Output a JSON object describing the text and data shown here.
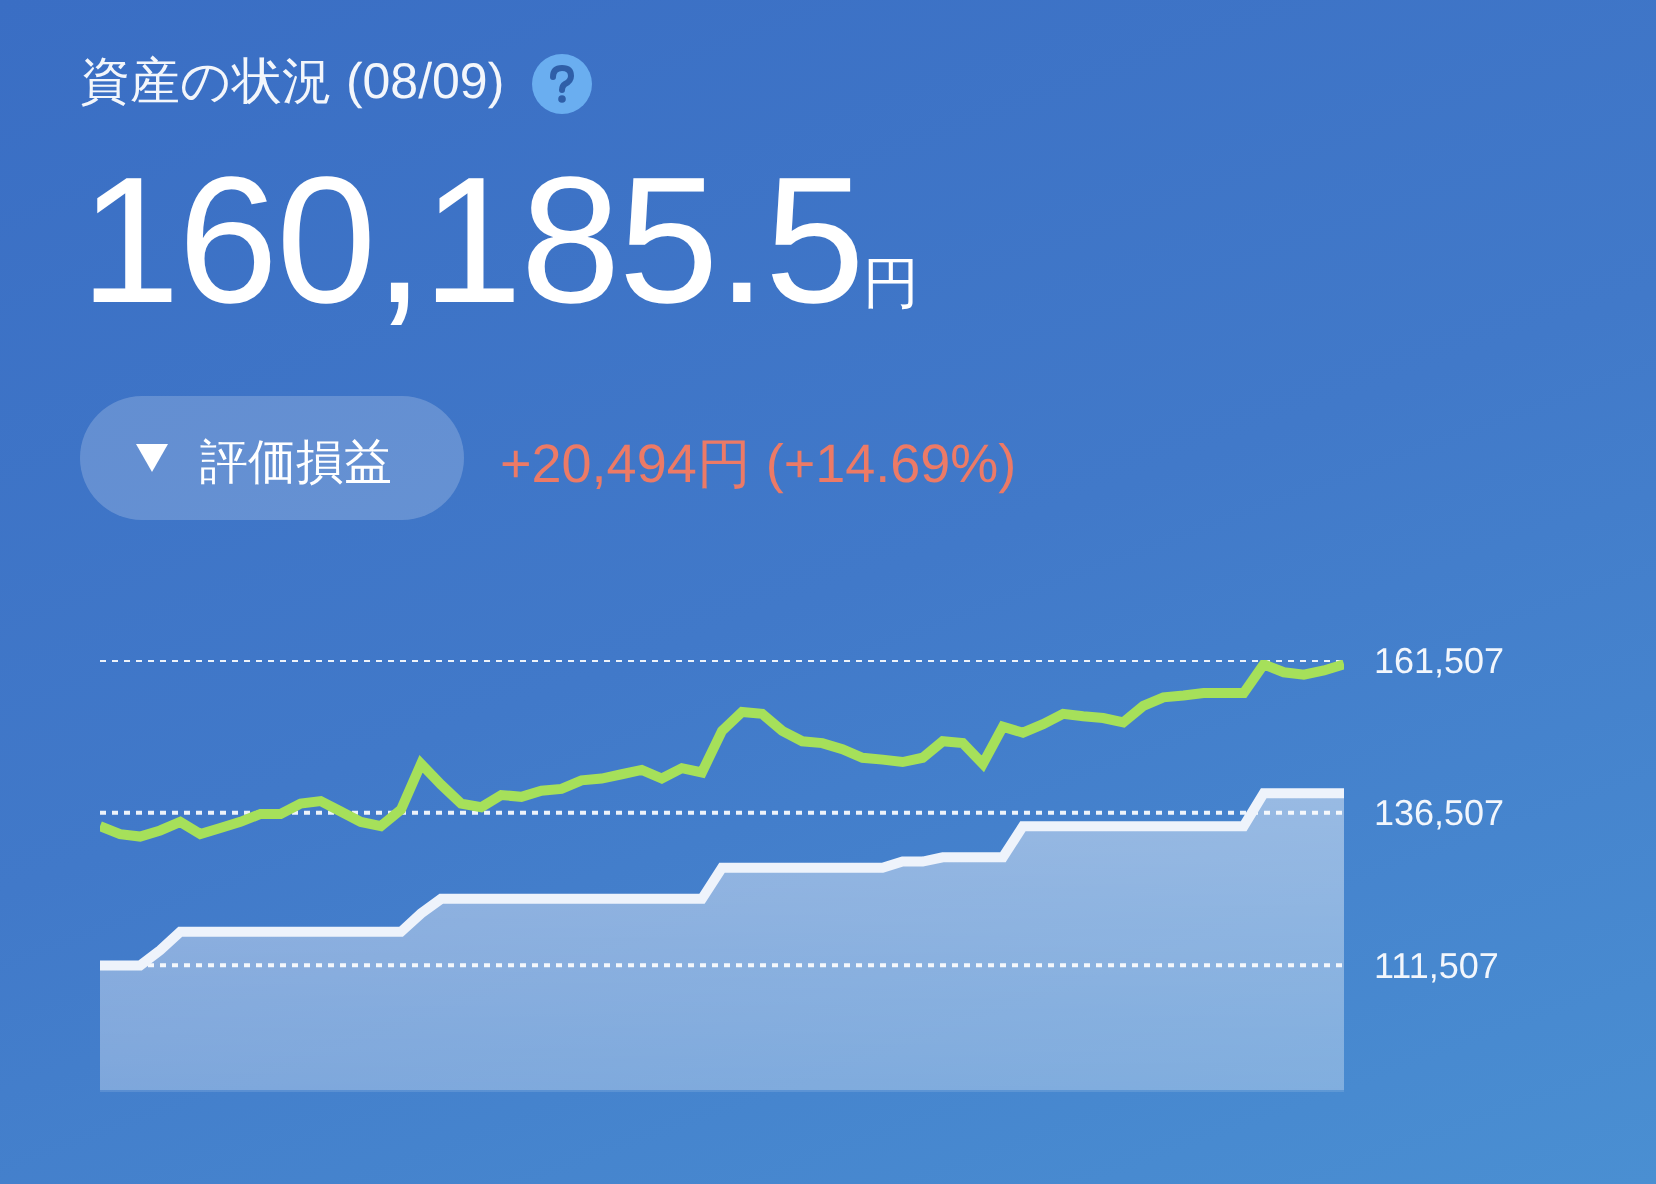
{
  "chart_data": {
    "type": "line",
    "title": "資産の状況 (08/09)",
    "annotations": [
      "160,185.5円",
      "評価損益",
      "+20,494円 (+14.69%)"
    ],
    "categories": [
      null,
      null,
      null,
      null,
      null,
      null,
      null,
      null,
      null,
      null,
      null,
      null,
      null,
      null,
      null,
      null,
      null,
      null,
      null,
      null,
      null,
      null,
      null,
      null,
      null,
      null,
      null,
      null,
      null,
      null,
      null,
      null,
      null,
      null,
      null,
      null,
      null,
      null,
      null,
      null,
      null,
      null,
      null,
      null,
      null,
      null,
      null,
      null,
      null,
      null,
      null,
      null,
      null,
      null,
      null,
      null,
      null,
      null,
      null,
      null,
      null,
      null,
      null
    ],
    "series": [
      {
        "type": "area",
        "color": "#eef3fb",
        "values": [
          111500,
          111500,
          111500,
          114000,
          117000,
          117000,
          117000,
          117000,
          117000,
          117000,
          117000,
          117000,
          117000,
          117000,
          117000,
          117000,
          120000,
          122400,
          122400,
          122400,
          122400,
          122400,
          122400,
          122400,
          122400,
          122400,
          122400,
          122400,
          122400,
          122400,
          122400,
          127500,
          127500,
          127500,
          127500,
          127500,
          127500,
          127500,
          127500,
          127500,
          128500,
          128500,
          129200,
          129200,
          129200,
          129200,
          134300,
          134300,
          134300,
          134300,
          134300,
          134300,
          134300,
          134300,
          134300,
          134300,
          134300,
          134300,
          139700,
          139700,
          139700,
          139700,
          139700
        ]
      },
      {
        "type": "line",
        "color": "#a6e05a",
        "values": [
          134300,
          133000,
          132600,
          133600,
          135000,
          133000,
          134000,
          135000,
          136300,
          136300,
          138000,
          138400,
          136700,
          135000,
          134300,
          137000,
          144500,
          141100,
          138000,
          137400,
          139400,
          139100,
          140100,
          140400,
          141800,
          142100,
          142800,
          143500,
          142100,
          143800,
          143100,
          149900,
          153000,
          152700,
          149900,
          148200,
          147900,
          146900,
          145500,
          145200,
          144800,
          145500,
          148200,
          147900,
          144500,
          150600,
          149600,
          151000,
          152700,
          152300,
          152000,
          151300,
          154000,
          155400,
          155700,
          156100,
          156100,
          156100,
          160800,
          159500,
          159100,
          159800,
          160800
        ]
      }
    ],
    "ylim": [
      91100,
      161507
    ],
    "yticks": [
      {
        "value": 111507,
        "label": "111,507"
      },
      {
        "value": 136507,
        "label": "136,507"
      },
      {
        "value": 161507,
        "label": "161,507"
      }
    ],
    "grid": "y",
    "legend": false,
    "tick_labels": "y",
    "marker": "none",
    "line_style": "solid"
  }
}
